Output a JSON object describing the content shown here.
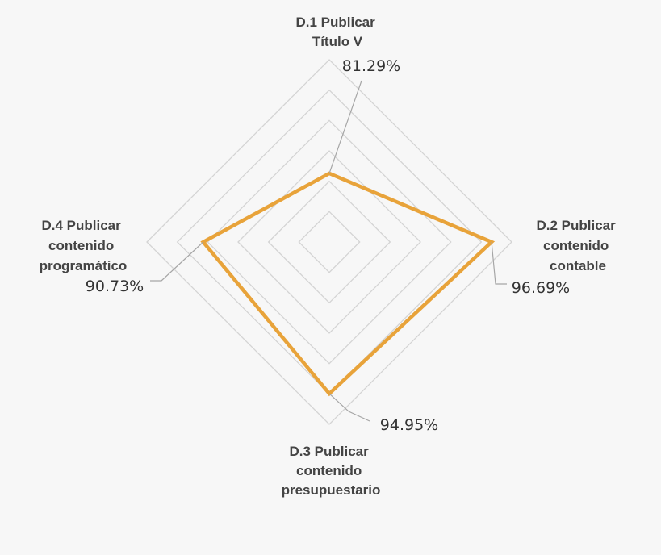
{
  "chart_data": {
    "type": "radar",
    "categories": [
      [
        "D.1 Publicar",
        "Título V"
      ],
      [
        "D.2 Publicar",
        "contenido",
        "contable"
      ],
      [
        "D.3 Publicar",
        "contenido",
        "presupuestario"
      ],
      [
        "D.4 Publicar",
        "contenido",
        "programático"
      ]
    ],
    "values": [
      81.29,
      96.69,
      94.95,
      90.73
    ],
    "value_labels": [
      "81.29%",
      "96.69%",
      "94.95%",
      "90.73%"
    ],
    "rlim": [
      70,
      100
    ],
    "grid": true,
    "legend": false,
    "colors": {
      "series": "#e8a33a",
      "grid": "#d4d4d4",
      "leader": "#a6a6a6",
      "background": "#f7f7f7"
    }
  }
}
